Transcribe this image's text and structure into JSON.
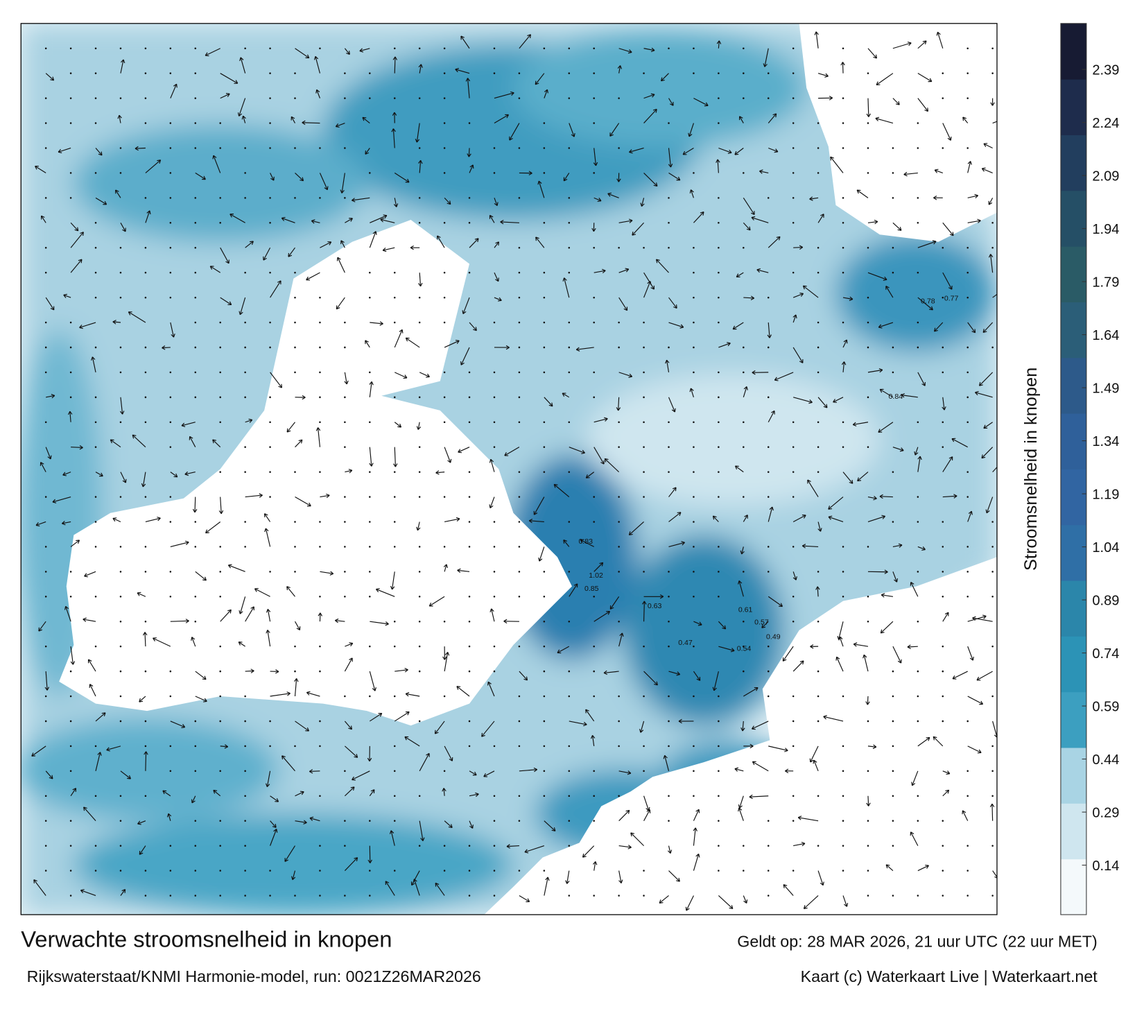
{
  "title": "Verwachte stroomsnelheid in knopen",
  "subtitle": "Rijkswaterstaat/KNMI Harmonie-model, run: 0021Z26MAR2026",
  "valid_time": "Geldt op: 28 MAR 2026, 21 uur UTC (22 uur MET)",
  "credit": "Kaart (c) Waterkaart Live | Waterkaart.net",
  "colorbar": {
    "label": "Stroomsnelheid in knopen",
    "clim": [
      0,
      2.52
    ],
    "ticks": [
      0.14,
      0.29,
      0.44,
      0.59,
      0.74,
      0.89,
      1.04,
      1.19,
      1.34,
      1.49,
      1.64,
      1.79,
      1.94,
      2.09,
      2.24,
      2.39
    ],
    "colormap": [
      "#f4f9fb",
      "#cfe6ef",
      "#a9d4e4",
      "#3c9fc0",
      "#2c93b6",
      "#2b86aa",
      "#2f6fa6",
      "#3165a2",
      "#2f609a",
      "#2d5a8a",
      "#2b5e78",
      "#2a5b66",
      "#254f66",
      "#223e5e",
      "#1e2c4c",
      "#171b33"
    ]
  },
  "current_labels": [
    "1.02",
    "0.85",
    "0.83",
    "0.78",
    "0.77",
    "0.84",
    "0.63",
    "0.61",
    "0.57",
    "0.54",
    "0.49",
    "0.47"
  ]
}
